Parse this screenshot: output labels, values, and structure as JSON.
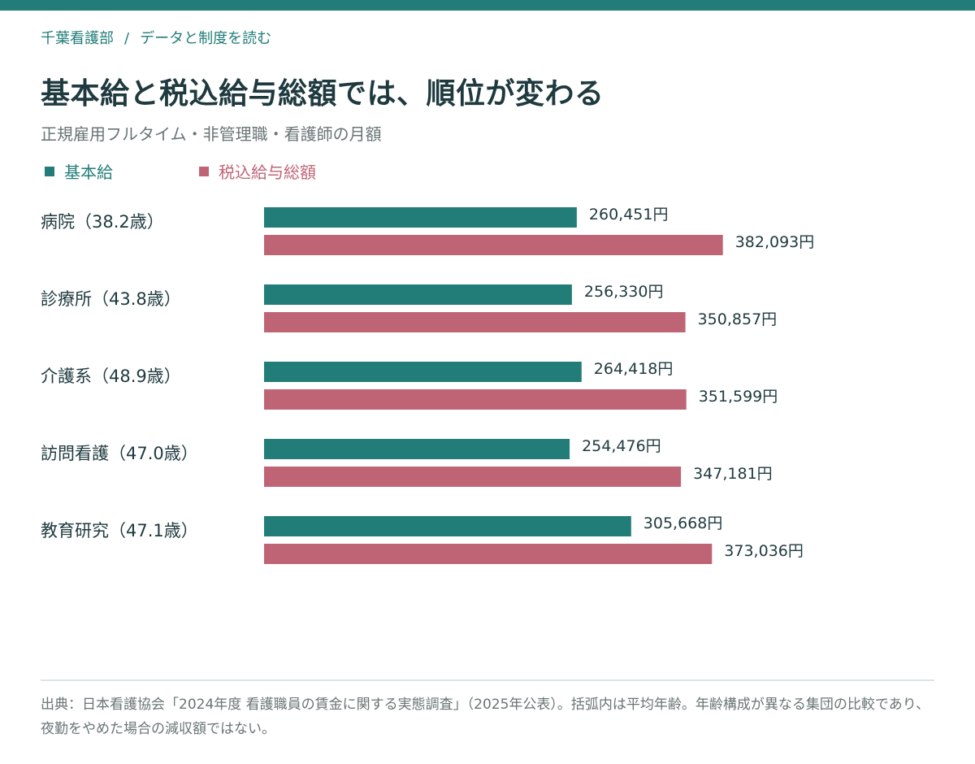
{
  "breadcrumb": {
    "site": "千葉看護部",
    "separator": "/",
    "section": "データと制度を読む"
  },
  "title": "基本給と税込給与総額では、順位が変わる",
  "subtitle": "正規雇用フルタイム・非管理職・看護師の月額",
  "colors": {
    "base": "#227d78",
    "total": "#bf6475",
    "topbar": "#227d78"
  },
  "chart_data": {
    "type": "bar",
    "orientation": "horizontal",
    "unit": "円",
    "categories": [
      "病院（38.2歳）",
      "診療所（43.8歳）",
      "介護系（48.9歳）",
      "訪問看護（47.0歳）",
      "教育研究（47.1歳）"
    ],
    "series": [
      {
        "name": "基本給",
        "color": "#227d78",
        "values": [
          260451,
          256330,
          264418,
          254476,
          305668
        ]
      },
      {
        "name": "税込給与総額",
        "color": "#bf6475",
        "values": [
          382093,
          350857,
          351599,
          347181,
          373036
        ]
      }
    ],
    "xlim": [
      0,
      460000
    ],
    "grid": false,
    "legend_position": "top-left"
  },
  "source": {
    "text": "出典：日本看護協会「2024年度 看護職員の賃金に関する実態調査」（2025年公表）。括弧内は平均年齢。年齢構成が異なる集団の比較であり、夜勤をやめた場合の減収額ではない。"
  }
}
